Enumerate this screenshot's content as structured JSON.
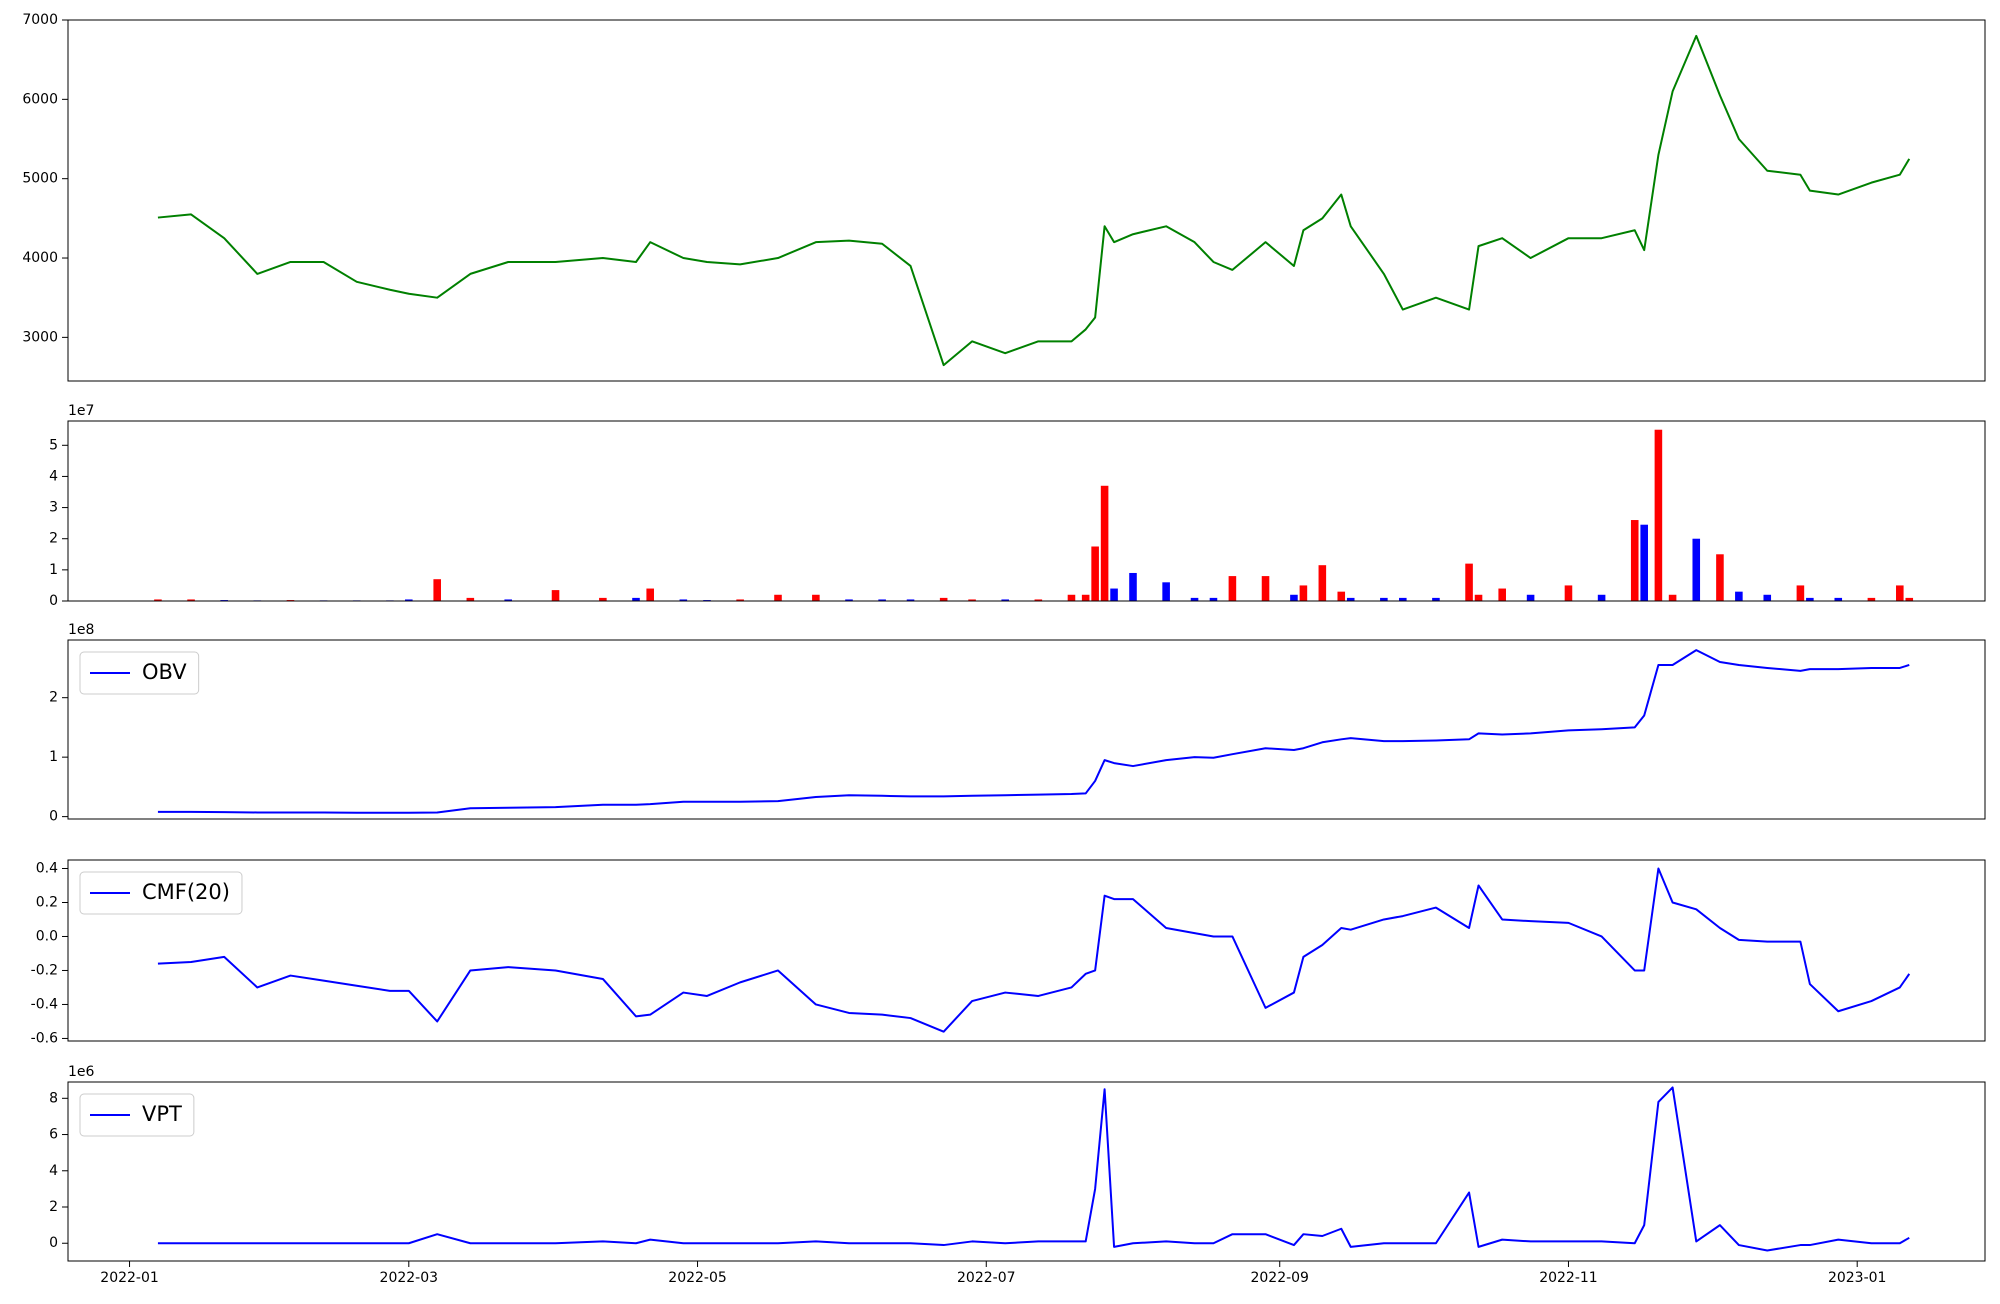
{
  "chart_data": [
    {
      "type": "line",
      "x": [
        6,
        13,
        20,
        27,
        34,
        41,
        48,
        55,
        59,
        65,
        72,
        80,
        90,
        100,
        107,
        110,
        117,
        122,
        129,
        137,
        145,
        152,
        159,
        165,
        172,
        178,
        185,
        192,
        199,
        202,
        204,
        206,
        208,
        212,
        219,
        225,
        229,
        233,
        240,
        246,
        248,
        252,
        256,
        258,
        265,
        269,
        276,
        283,
        285,
        290,
        296,
        304,
        311,
        318,
        320,
        323,
        326,
        331,
        336,
        340,
        346,
        353,
        355,
        361,
        368,
        374,
        376
      ],
      "xlim": [
        -13,
        392
      ],
      "ylim": [
        2450,
        7000
      ],
      "yticks": [
        3000,
        4000,
        5000,
        6000,
        7000
      ],
      "series": [
        {
          "color": "#008000",
          "values": [
            4510,
            4550,
            4250,
            3800,
            3950,
            3950,
            3700,
            3600,
            3550,
            3500,
            3800,
            3950,
            3950,
            4000,
            3950,
            4200,
            4000,
            3950,
            3920,
            4000,
            4200,
            4220,
            4180,
            3900,
            2650,
            2950,
            2800,
            2950,
            2950,
            3100,
            3250,
            4400,
            4200,
            4300,
            4400,
            4200,
            3950,
            3850,
            4200,
            3900,
            4350,
            4500,
            4800,
            4400,
            3800,
            3350,
            3500,
            3350,
            4150,
            4250,
            4000,
            4250,
            4250,
            4350,
            4100,
            5300,
            6100,
            6800,
            6050,
            5500,
            5100,
            5050,
            4850,
            4800,
            4950,
            5050,
            5250
          ]
        }
      ]
    },
    {
      "type": "bar",
      "x": [
        6,
        13,
        20,
        27,
        34,
        41,
        48,
        55,
        59,
        65,
        72,
        80,
        90,
        100,
        107,
        110,
        117,
        122,
        129,
        137,
        145,
        152,
        159,
        165,
        172,
        178,
        185,
        192,
        199,
        202,
        204,
        206,
        208,
        212,
        219,
        225,
        229,
        233,
        240,
        246,
        248,
        252,
        256,
        258,
        265,
        269,
        276,
        283,
        285,
        290,
        296,
        304,
        311,
        318,
        320,
        323,
        326,
        331,
        336,
        340,
        346,
        353,
        355,
        361,
        368,
        374,
        376
      ],
      "xlim": [
        -13,
        392
      ],
      "ylim": [
        0,
        5.78
      ],
      "yticks": [
        0,
        1,
        2,
        3,
        4,
        5
      ],
      "y_offset": "1e7",
      "series": [
        {
          "color": "#ff0000",
          "values": [
            0.05,
            0.05,
            null,
            null,
            0.03,
            null,
            null,
            null,
            null,
            0.7,
            0.1,
            null,
            0.35,
            0.1,
            null,
            0.4,
            null,
            null,
            0.05,
            0.2,
            0.2,
            null,
            null,
            null,
            0.1,
            0.05,
            null,
            0.05,
            0.2,
            0.2,
            1.75,
            3.7,
            null,
            null,
            null,
            null,
            null,
            0.8,
            0.8,
            null,
            0.5,
            1.15,
            0.3,
            null,
            null,
            null,
            null,
            1.2,
            0.2,
            0.4,
            null,
            0.5,
            null,
            2.6,
            null,
            5.5,
            0.2,
            null,
            1.5,
            null,
            null,
            0.5,
            null,
            null,
            0.1,
            0.5,
            0.1
          ]
        },
        {
          "color": "#0000ff",
          "values": [
            null,
            null,
            0.03,
            0.02,
            null,
            0.02,
            0.02,
            0.02,
            0.05,
            null,
            null,
            0.05,
            null,
            null,
            0.1,
            null,
            0.05,
            0.03,
            null,
            null,
            null,
            0.05,
            0.05,
            0.05,
            null,
            null,
            0.05,
            null,
            null,
            null,
            null,
            null,
            0.4,
            0.9,
            0.6,
            0.1,
            0.1,
            null,
            null,
            0.2,
            null,
            null,
            null,
            0.1,
            0.1,
            0.1,
            0.1,
            null,
            null,
            null,
            0.2,
            null,
            0.2,
            null,
            2.45,
            null,
            null,
            2.0,
            null,
            0.3,
            0.2,
            null,
            0.1,
            0.1,
            null,
            null,
            null
          ]
        }
      ]
    },
    {
      "type": "line",
      "x": [
        6,
        13,
        20,
        27,
        34,
        41,
        48,
        55,
        59,
        65,
        72,
        80,
        90,
        100,
        107,
        110,
        117,
        122,
        129,
        137,
        145,
        152,
        159,
        165,
        172,
        178,
        185,
        192,
        199,
        202,
        204,
        206,
        208,
        212,
        219,
        225,
        229,
        233,
        240,
        246,
        248,
        252,
        256,
        258,
        265,
        269,
        276,
        283,
        285,
        290,
        296,
        304,
        311,
        318,
        320,
        323,
        326,
        331,
        336,
        340,
        346,
        353,
        355,
        361,
        368,
        374,
        376
      ],
      "xlim": [
        -13,
        392
      ],
      "ylim": [
        -0.04,
        2.97
      ],
      "yticks": [
        0,
        1,
        2
      ],
      "y_offset": "1e8",
      "legend": "upper left",
      "series": [
        {
          "name": "OBV",
          "color": "#0000ff",
          "values": [
            0.08,
            0.08,
            0.075,
            0.07,
            0.07,
            0.07,
            0.065,
            0.065,
            0.065,
            0.07,
            0.14,
            0.15,
            0.16,
            0.2,
            0.2,
            0.21,
            0.25,
            0.25,
            0.25,
            0.26,
            0.33,
            0.36,
            0.35,
            0.34,
            0.34,
            0.35,
            0.36,
            0.37,
            0.38,
            0.39,
            0.6,
            0.95,
            0.9,
            0.85,
            0.95,
            1.0,
            0.99,
            1.05,
            1.15,
            1.12,
            1.15,
            1.25,
            1.3,
            1.32,
            1.27,
            1.27,
            1.28,
            1.3,
            1.4,
            1.38,
            1.4,
            1.45,
            1.47,
            1.5,
            1.7,
            2.55,
            2.55,
            2.8,
            2.6,
            2.55,
            2.5,
            2.45,
            2.48,
            2.48,
            2.5,
            2.5,
            2.55
          ]
        }
      ]
    },
    {
      "type": "line",
      "x": [
        6,
        13,
        20,
        27,
        34,
        41,
        48,
        55,
        59,
        65,
        72,
        80,
        90,
        100,
        107,
        110,
        117,
        122,
        129,
        137,
        145,
        152,
        159,
        165,
        172,
        178,
        185,
        192,
        199,
        202,
        204,
        206,
        208,
        212,
        219,
        225,
        229,
        233,
        240,
        246,
        248,
        252,
        256,
        258,
        265,
        269,
        276,
        283,
        285,
        290,
        296,
        304,
        311,
        318,
        320,
        323,
        326,
        331,
        336,
        340,
        346,
        353,
        355,
        361,
        368,
        374,
        376
      ],
      "xlim": [
        -13,
        392
      ],
      "ylim": [
        -0.615,
        0.45
      ],
      "yticks": [
        -0.6,
        -0.4,
        -0.2,
        {
          "value": 0,
          "label": "0.0"
        },
        0.2,
        0.4
      ],
      "legend": "upper left",
      "series": [
        {
          "name": "CMF(20)",
          "color": "#0000ff",
          "values": [
            -0.16,
            -0.15,
            -0.12,
            -0.3,
            -0.23,
            -0.26,
            -0.29,
            -0.32,
            -0.32,
            -0.5,
            -0.2,
            -0.18,
            -0.2,
            -0.25,
            -0.47,
            -0.46,
            -0.33,
            -0.35,
            -0.27,
            -0.2,
            -0.4,
            -0.45,
            -0.46,
            -0.48,
            -0.56,
            -0.38,
            -0.33,
            -0.35,
            -0.3,
            -0.22,
            -0.2,
            0.24,
            0.22,
            0.22,
            0.05,
            0.02,
            0.0,
            0.0,
            -0.42,
            -0.33,
            -0.12,
            -0.05,
            0.05,
            0.04,
            0.1,
            0.12,
            0.17,
            0.05,
            0.3,
            0.1,
            0.09,
            0.08,
            0.0,
            -0.2,
            -0.2,
            0.4,
            0.2,
            0.16,
            0.05,
            -0.02,
            -0.03,
            -0.03,
            -0.28,
            -0.44,
            -0.38,
            -0.3,
            -0.22
          ]
        }
      ]
    },
    {
      "type": "line",
      "x": [
        6,
        13,
        20,
        27,
        34,
        41,
        48,
        55,
        59,
        65,
        72,
        80,
        90,
        100,
        107,
        110,
        117,
        122,
        129,
        137,
        145,
        152,
        159,
        165,
        172,
        178,
        185,
        192,
        199,
        202,
        204,
        206,
        208,
        212,
        219,
        225,
        229,
        233,
        240,
        246,
        248,
        252,
        256,
        258,
        265,
        269,
        276,
        283,
        285,
        290,
        296,
        304,
        311,
        318,
        320,
        323,
        326,
        331,
        336,
        340,
        346,
        353,
        355,
        361,
        368,
        374,
        376
      ],
      "xlim": [
        -13,
        392
      ],
      "xticks": [
        {
          "value": 0,
          "label": "2022-01"
        },
        {
          "value": 59,
          "label": "2022-03"
        },
        {
          "value": 120,
          "label": "2022-05"
        },
        {
          "value": 181,
          "label": "2022-07"
        },
        {
          "value": 243,
          "label": "2022-09"
        },
        {
          "value": 304,
          "label": "2022-11"
        },
        {
          "value": 365,
          "label": "2023-01"
        }
      ],
      "ylim": [
        -0.98,
        8.9
      ],
      "yticks": [
        0,
        2,
        4,
        6,
        8
      ],
      "y_offset": "1e6",
      "legend": "upper left",
      "series": [
        {
          "name": "VPT",
          "color": "#0000ff",
          "values": [
            0,
            0,
            0,
            0,
            0,
            0,
            0,
            0,
            0,
            0.5,
            0,
            0,
            0,
            0.1,
            0,
            0.2,
            0,
            0,
            0,
            0,
            0.1,
            0,
            0,
            0,
            -0.1,
            0.1,
            0,
            0.1,
            0.1,
            0.1,
            3,
            8.5,
            -0.2,
            0,
            0.1,
            0,
            0,
            0.5,
            0.5,
            -0.1,
            0.5,
            0.4,
            0.8,
            -0.2,
            0,
            0,
            0,
            2.8,
            -0.2,
            0.2,
            0.1,
            0.1,
            0.1,
            0,
            1.0,
            7.8,
            8.6,
            0.1,
            1.0,
            -0.1,
            -0.4,
            -0.1,
            -0.1,
            0.2,
            0,
            0,
            0.3
          ]
        }
      ]
    }
  ]
}
